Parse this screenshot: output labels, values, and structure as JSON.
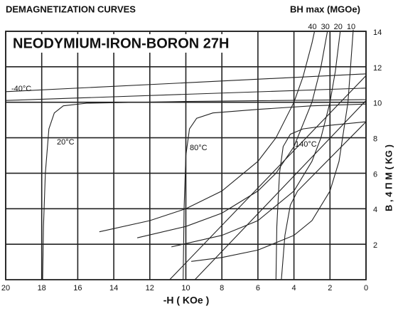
{
  "chart_data": {
    "type": "line",
    "title": "DEMAGNETIZATION CURVES",
    "subtitle": "NEODYMIUM-IRON-BORON 27H",
    "top_axis_label": "BH max (MGOe)",
    "x_label": "-H ( KOe )",
    "y_label": "B , 4 Π M ( KG )",
    "xlim": [
      20,
      0
    ],
    "xticks": [
      20,
      18,
      16,
      14,
      12,
      10,
      8,
      6,
      4,
      2,
      0
    ],
    "ylim": [
      0,
      14
    ],
    "yticks": [
      2,
      4,
      6,
      8,
      10,
      12,
      14
    ],
    "grid": true,
    "annotations": [
      "-40°C",
      "20°C",
      "80°C",
      "140°C"
    ],
    "series": [
      {
        "color": "#222222",
        "x": [
          20,
          0
        ],
        "values": [
          10.6,
          11.6
        ]
      },
      {
        "color": "#222222",
        "x": [
          20,
          0
        ],
        "values": [
          10.1,
          10.8
        ]
      },
      {
        "color": "#222222",
        "x": [
          17.95,
          17.9,
          17.8,
          17.6,
          17.3,
          16.8,
          15.5,
          10,
          0
        ],
        "values": [
          0,
          3,
          6,
          8.5,
          9.4,
          9.8,
          9.95,
          10.05,
          10.15
        ]
      },
      {
        "color": "#222222",
        "x": [
          10.15,
          10.1,
          10.0,
          9.8,
          9.4,
          8.5,
          6,
          3,
          0
        ],
        "values": [
          0,
          4,
          7,
          8.5,
          9.1,
          9.4,
          9.6,
          9.8,
          9.9
        ]
      },
      {
        "color": "#222222",
        "x": [
          5.0,
          4.95,
          4.8,
          4.6,
          4.2,
          3.5,
          2,
          0
        ],
        "values": [
          0,
          3,
          6,
          7.5,
          8.2,
          8.5,
          8.7,
          8.9
        ]
      },
      {
        "color": "#222222",
        "x": [
          10.9,
          0
        ],
        "values": [
          0,
          11.5
        ]
      },
      {
        "color": "#222222",
        "x": [
          9.5,
          0
        ],
        "values": [
          0,
          10.1
        ]
      },
      {
        "color": "#222222",
        "x": [
          4.7,
          4.5,
          4.2,
          3.8,
          0
        ],
        "values": [
          0,
          2.5,
          4.2,
          5.0,
          8.9
        ]
      },
      {
        "name": "40",
        "color": "#222222",
        "x": [
          14.8,
          12,
          10,
          8,
          6,
          5,
          4,
          3.5,
          3,
          2.86
        ],
        "values": [
          2.7,
          3.33,
          4,
          5,
          6.67,
          8,
          10,
          11.43,
          13.33,
          13.99
        ]
      },
      {
        "name": "30",
        "color": "#222222",
        "x": [
          12.7,
          10,
          8,
          6,
          5,
          4,
          3,
          2.5,
          2.14
        ],
        "values": [
          2.36,
          3,
          3.75,
          5,
          6,
          7.5,
          10,
          12,
          14.02
        ]
      },
      {
        "name": "20",
        "color": "#222222",
        "x": [
          10.8,
          8,
          6,
          4,
          3,
          2.5,
          2,
          1.7,
          1.43
        ],
        "values": [
          1.85,
          2.5,
          3.33,
          5,
          6.67,
          8,
          10,
          11.76,
          13.99
        ]
      },
      {
        "name": "10",
        "color": "#222222",
        "x": [
          9.7,
          8,
          6,
          4,
          3,
          2,
          1.5,
          1,
          0.71
        ],
        "values": [
          1.03,
          1.25,
          1.67,
          2.5,
          3.33,
          5,
          6.67,
          10,
          14.08
        ]
      }
    ]
  }
}
